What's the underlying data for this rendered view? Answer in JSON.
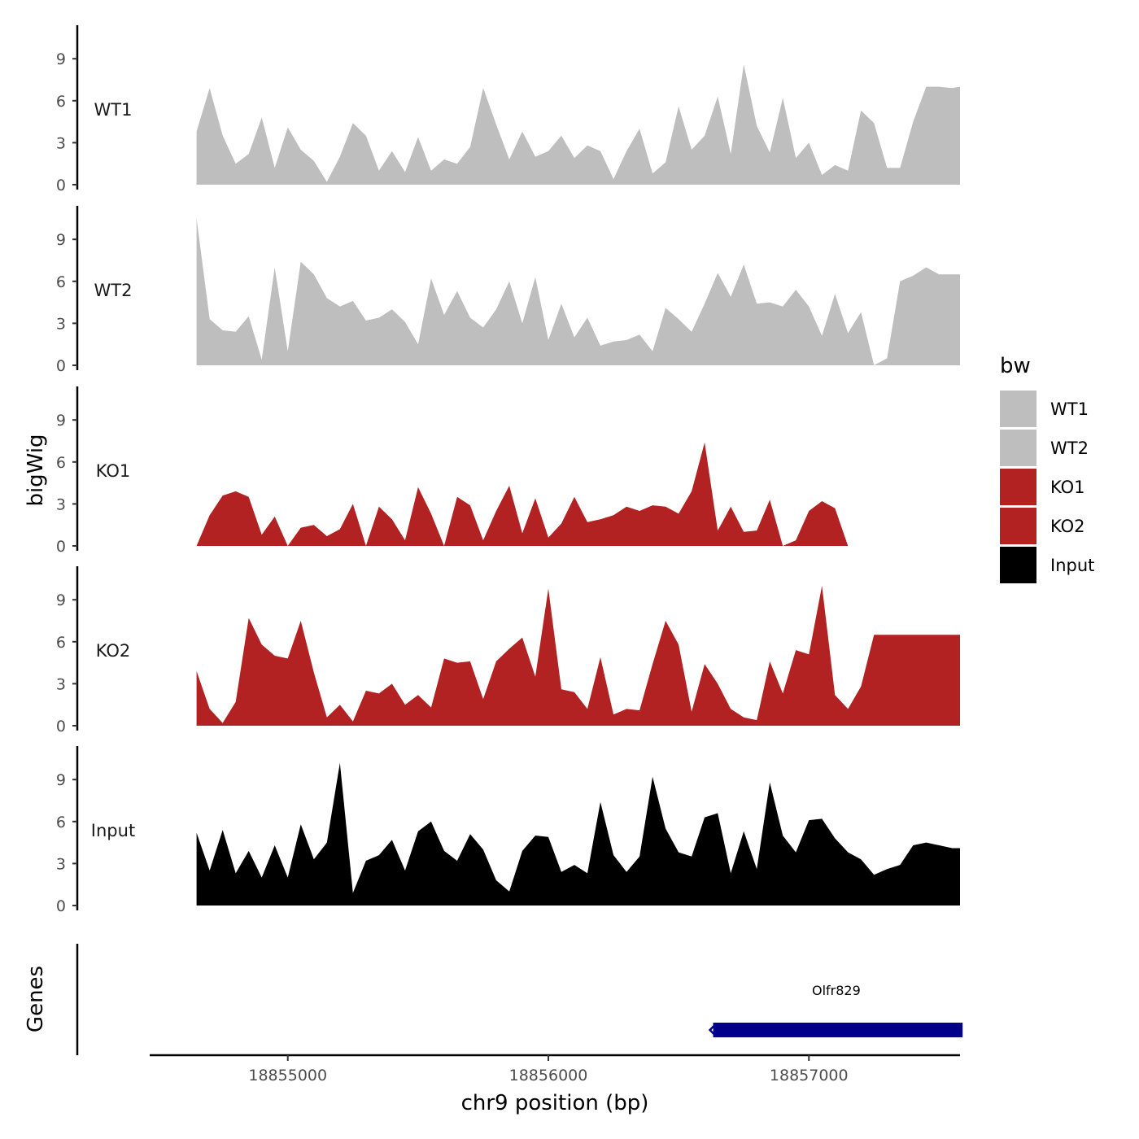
{
  "chart_data": {
    "type": "area",
    "title": "",
    "xlabel": "chr9 position (bp)",
    "ylabel": "bigWig",
    "genes_label": "Genes",
    "xlim": [
      18854470,
      18857580
    ],
    "xticks": [
      18855000,
      18856000,
      18857000
    ],
    "xtick_labels": [
      "18855000",
      "18856000",
      "18857000"
    ],
    "ylim": [
      0,
      11
    ],
    "yticks": [
      0,
      3,
      6,
      9
    ],
    "ytick_labels": [
      "0",
      "3",
      "6",
      "9"
    ],
    "x": [
      18854650,
      18854700,
      18854750,
      18854800,
      18854850,
      18854900,
      18854950,
      18855000,
      18855050,
      18855100,
      18855150,
      18855200,
      18855250,
      18855300,
      18855350,
      18855400,
      18855450,
      18855500,
      18855550,
      18855600,
      18855650,
      18855700,
      18855750,
      18855800,
      18855850,
      18855900,
      18855950,
      18856000,
      18856050,
      18856100,
      18856150,
      18856200,
      18856250,
      18856300,
      18856350,
      18856400,
      18856450,
      18856500,
      18856550,
      18856600,
      18856650,
      18856700,
      18856750,
      18856800,
      18856850,
      18856900,
      18856950,
      18857000,
      18857050,
      18857100,
      18857150,
      18857200,
      18857250,
      18857300,
      18857350,
      18857400,
      18857450,
      18857500,
      18857550,
      18857580
    ],
    "series": [
      {
        "name": "WT1",
        "color": "#bebebe",
        "values": [
          3.8,
          6.9,
          3.5,
          1.5,
          2.2,
          4.8,
          1.2,
          4.1,
          2.5,
          1.7,
          0.2,
          2.0,
          4.4,
          3.5,
          1.0,
          2.4,
          0.9,
          3.4,
          1.0,
          1.8,
          1.5,
          2.7,
          6.9,
          4.3,
          1.8,
          3.8,
          2.0,
          2.4,
          3.5,
          1.9,
          2.8,
          2.4,
          0.4,
          2.4,
          4.0,
          0.8,
          1.6,
          5.6,
          2.5,
          3.5,
          6.3,
          2.2,
          8.6,
          4.2,
          2.3,
          6.2,
          1.9,
          3.0,
          0.7,
          1.4,
          1.0,
          5.3,
          4.4,
          1.2,
          1.2,
          4.5,
          7.0,
          7.0,
          6.9,
          7.0
        ]
      },
      {
        "name": "WT2",
        "color": "#bebebe",
        "values": [
          10.5,
          3.3,
          2.5,
          2.4,
          3.5,
          0.4,
          7.0,
          1.0,
          7.4,
          6.5,
          4.8,
          4.2,
          4.6,
          3.2,
          3.4,
          4.0,
          3.1,
          1.5,
          6.2,
          3.6,
          5.3,
          3.4,
          2.7,
          4.0,
          6.0,
          3.0,
          6.3,
          1.8,
          4.4,
          2.0,
          3.4,
          1.4,
          1.7,
          1.8,
          2.2,
          1.0,
          4.1,
          3.3,
          2.4,
          4.4,
          6.6,
          4.9,
          7.2,
          4.4,
          4.5,
          4.2,
          5.4,
          4.2,
          2.1,
          5.1,
          2.3,
          3.8,
          0.0,
          0.5,
          6.0,
          6.4,
          7.0,
          6.5,
          6.5,
          6.5
        ]
      },
      {
        "name": "KO1",
        "color": "#b22222",
        "values": [
          0.0,
          2.2,
          3.6,
          3.9,
          3.5,
          0.8,
          2.1,
          0.0,
          1.3,
          1.5,
          0.7,
          1.2,
          3.0,
          0.0,
          2.8,
          1.9,
          0.4,
          4.2,
          2.3,
          0.0,
          3.5,
          2.9,
          0.4,
          2.5,
          4.3,
          0.9,
          3.4,
          0.6,
          1.6,
          3.5,
          1.7,
          1.9,
          2.2,
          2.8,
          2.5,
          2.9,
          2.8,
          2.3,
          3.9,
          7.4,
          1.1,
          2.8,
          1.0,
          1.1,
          3.3,
          0.0,
          0.4,
          2.5,
          3.2,
          2.7,
          0.0,
          0.0,
          0.0,
          0.0,
          0.0,
          0.0,
          0.0,
          0.0,
          0.0,
          0.0
        ]
      },
      {
        "name": "KO2",
        "color": "#b22222",
        "values": [
          3.9,
          1.2,
          0.2,
          1.7,
          7.7,
          5.8,
          5.0,
          4.8,
          7.5,
          3.8,
          0.6,
          1.5,
          0.3,
          2.5,
          2.3,
          3.0,
          1.5,
          2.2,
          1.3,
          4.8,
          4.5,
          4.6,
          1.9,
          4.6,
          5.5,
          6.3,
          3.5,
          9.8,
          2.6,
          2.4,
          1.2,
          4.9,
          0.8,
          1.2,
          1.1,
          4.4,
          7.5,
          5.8,
          1.0,
          4.4,
          3.0,
          1.2,
          0.6,
          0.4,
          4.6,
          2.3,
          5.4,
          5.1,
          10.0,
          2.2,
          1.2,
          2.8,
          6.5,
          6.5,
          6.5,
          6.5,
          6.5,
          6.5,
          6.5,
          6.5
        ]
      },
      {
        "name": "Input",
        "color": "#000000",
        "values": [
          5.2,
          2.5,
          5.4,
          2.3,
          3.9,
          2.0,
          4.3,
          2.0,
          5.8,
          3.3,
          4.5,
          10.2,
          0.9,
          3.2,
          3.6,
          4.7,
          2.5,
          5.3,
          6.0,
          3.9,
          3.2,
          5.1,
          4.0,
          1.8,
          1.0,
          3.9,
          5.0,
          4.9,
          2.4,
          2.9,
          2.3,
          7.4,
          3.6,
          2.4,
          3.5,
          9.2,
          5.5,
          3.8,
          3.5,
          6.3,
          6.6,
          2.3,
          5.3,
          2.6,
          8.8,
          5.0,
          3.8,
          6.1,
          6.2,
          4.8,
          3.8,
          3.3,
          2.2,
          2.6,
          2.9,
          4.3,
          4.5,
          4.3,
          4.1,
          4.1
        ]
      }
    ],
    "genes": [
      {
        "name": "Olfr829",
        "start": 18856620,
        "end": 18857590,
        "strand": "-",
        "color": "#00008b"
      }
    ],
    "legend": {
      "title": "bw",
      "position": "right",
      "entries": [
        {
          "label": "WT1",
          "color": "#bebebe"
        },
        {
          "label": "WT2",
          "color": "#bebebe"
        },
        {
          "label": "KO1",
          "color": "#b22222"
        },
        {
          "label": "KO2",
          "color": "#b22222"
        },
        {
          "label": "Input",
          "color": "#000000"
        }
      ]
    }
  }
}
